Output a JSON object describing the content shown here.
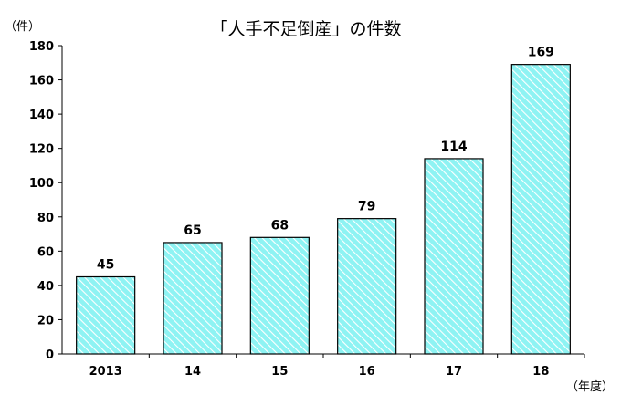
{
  "chart_data": {
    "type": "bar",
    "title": "「人手不足倒産」の件数",
    "ylabel": "（件）",
    "xlabel": "（年度）",
    "categories": [
      "2013",
      "14",
      "15",
      "16",
      "17",
      "18"
    ],
    "values": [
      45,
      65,
      68,
      79,
      114,
      169
    ],
    "data_labels": [
      "45",
      "65",
      "68",
      "79",
      "114",
      "169"
    ],
    "ylim": [
      0,
      180
    ],
    "yticks": [
      0,
      20,
      40,
      60,
      80,
      100,
      120,
      140,
      160,
      180
    ],
    "grid": false,
    "legend": "none",
    "bar_fill_color": "#8ef3f3",
    "bar_hatch_color": "#ffffff",
    "bar_edge_color": "#000000"
  }
}
